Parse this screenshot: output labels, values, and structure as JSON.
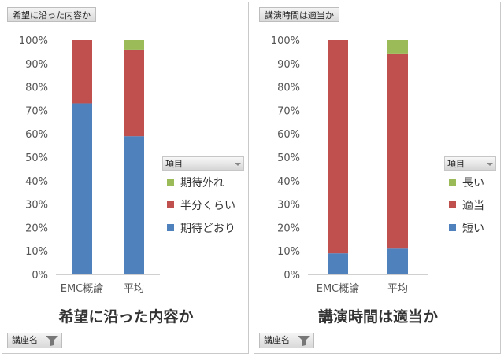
{
  "chart_data": [
    {
      "type": "bar",
      "stacked": true,
      "percent": true,
      "title": "希望に沿った内容か",
      "field_button": "希望に沿った内容か",
      "filter_label": "講座名",
      "legend_title": "項目",
      "legend_position": "right",
      "categories": [
        "EMC概論",
        "平均"
      ],
      "series": [
        {
          "name": "期待どおり",
          "color": "#4f81bd",
          "values": [
            73,
            59
          ]
        },
        {
          "name": "半分くらい",
          "color": "#c0504d",
          "values": [
            27,
            37
          ]
        },
        {
          "name": "期待外れ",
          "color": "#9bbb59",
          "values": [
            0,
            4
          ]
        }
      ],
      "ylim": [
        0,
        100
      ],
      "yticks": [
        "0%",
        "10%",
        "20%",
        "30%",
        "40%",
        "50%",
        "60%",
        "70%",
        "80%",
        "90%",
        "100%"
      ],
      "grid": false
    },
    {
      "type": "bar",
      "stacked": true,
      "percent": true,
      "title": "講演時間は適当か",
      "field_button": "講演時間は適当か",
      "filter_label": "講座名",
      "legend_title": "項目",
      "legend_position": "right",
      "categories": [
        "EMC概論",
        "平均"
      ],
      "series": [
        {
          "name": "短い",
          "color": "#4f81bd",
          "values": [
            9,
            11
          ]
        },
        {
          "name": "適当",
          "color": "#c0504d",
          "values": [
            91,
            83
          ]
        },
        {
          "name": "長い",
          "color": "#9bbb59",
          "values": [
            0,
            6
          ]
        }
      ],
      "ylim": [
        0,
        100
      ],
      "yticks": [
        "0%",
        "10%",
        "20%",
        "30%",
        "40%",
        "50%",
        "60%",
        "70%",
        "80%",
        "90%",
        "100%"
      ],
      "grid": false
    }
  ]
}
